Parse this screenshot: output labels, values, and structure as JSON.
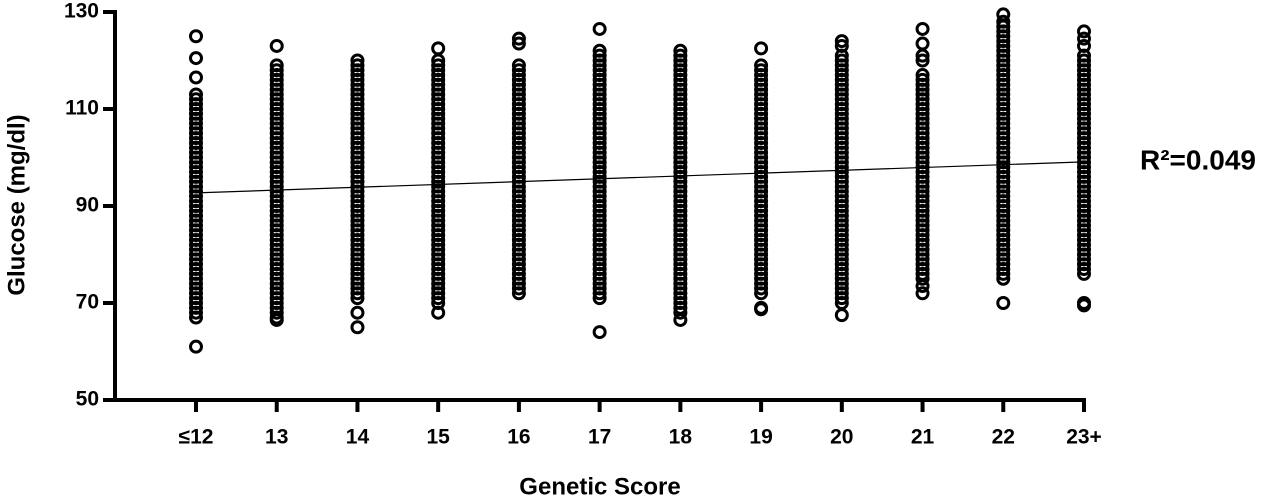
{
  "chart_data": {
    "type": "strip",
    "x_label": "Genetic Score",
    "y_label": "Glucose (mg/dl)",
    "annotation": "R²=0.049",
    "categories": [
      "≤12",
      "13",
      "14",
      "15",
      "16",
      "17",
      "18",
      "19",
      "20",
      "21",
      "22",
      "23+"
    ],
    "ylim": [
      50,
      130
    ],
    "yticks": [
      50,
      70,
      90,
      110,
      130
    ],
    "color": "#000000",
    "points": [
      [
        68,
        69,
        70,
        71,
        72,
        73,
        74,
        75,
        76,
        77,
        78,
        79,
        80,
        81,
        82,
        83,
        84,
        85,
        86,
        87,
        88,
        89,
        90,
        91,
        92,
        93,
        94,
        95,
        96,
        97,
        98,
        99,
        100,
        101,
        102,
        103,
        104,
        105,
        106,
        107,
        108,
        109,
        110,
        111,
        112,
        113,
        125,
        120.5,
        116.5,
        67,
        61
      ],
      [
        67,
        68,
        69,
        70,
        71,
        72,
        73,
        74,
        75,
        76,
        77,
        78,
        79,
        80,
        81,
        82,
        83,
        84,
        85,
        86,
        87,
        88,
        89,
        90,
        91,
        92,
        93,
        94,
        95,
        96,
        97,
        98,
        99,
        100,
        101,
        102,
        103,
        104,
        105,
        106,
        107,
        108,
        109,
        110,
        111,
        112,
        113,
        114,
        115,
        116,
        117,
        118,
        119,
        123,
        66.5
      ],
      [
        71,
        72,
        73,
        74,
        75,
        76,
        77,
        78,
        79,
        80,
        81,
        82,
        83,
        84,
        85,
        86,
        87,
        88,
        89,
        90,
        91,
        92,
        93,
        94,
        95,
        96,
        97,
        98,
        99,
        100,
        101,
        102,
        103,
        104,
        105,
        106,
        107,
        108,
        109,
        110,
        111,
        112,
        113,
        114,
        115,
        116,
        117,
        118,
        119,
        120,
        68,
        65
      ],
      [
        70,
        71,
        72,
        73,
        74,
        75,
        76,
        77,
        78,
        79,
        80,
        81,
        82,
        83,
        84,
        85,
        86,
        87,
        88,
        89,
        90,
        91,
        92,
        93,
        94,
        95,
        96,
        97,
        98,
        99,
        100,
        101,
        102,
        103,
        104,
        105,
        106,
        107,
        108,
        109,
        110,
        111,
        112,
        113,
        114,
        115,
        116,
        117,
        118,
        119,
        120,
        122.5,
        68
      ],
      [
        72,
        73,
        74,
        75,
        76,
        77,
        78,
        79,
        80,
        81,
        82,
        83,
        84,
        85,
        86,
        87,
        88,
        89,
        90,
        91,
        92,
        93,
        94,
        95,
        96,
        97,
        98,
        99,
        100,
        101,
        102,
        103,
        104,
        105,
        106,
        107,
        108,
        109,
        110,
        111,
        112,
        113,
        114,
        115,
        116,
        117,
        118,
        119,
        124.5,
        123.5
      ],
      [
        72,
        73,
        74,
        75,
        76,
        77,
        78,
        79,
        80,
        81,
        82,
        83,
        84,
        85,
        86,
        87,
        88,
        89,
        90,
        91,
        92,
        93,
        94,
        95,
        96,
        97,
        98,
        99,
        100,
        101,
        102,
        103,
        104,
        105,
        106,
        107,
        108,
        109,
        110,
        111,
        112,
        113,
        114,
        115,
        116,
        117,
        118,
        119,
        120,
        121,
        122,
        126.5,
        71,
        64
      ],
      [
        68,
        69,
        70,
        71,
        72,
        73,
        74,
        75,
        76,
        77,
        78,
        79,
        80,
        81,
        82,
        83,
        84,
        85,
        86,
        87,
        88,
        89,
        90,
        91,
        92,
        93,
        94,
        95,
        96,
        97,
        98,
        99,
        100,
        101,
        102,
        103,
        104,
        105,
        106,
        107,
        108,
        109,
        110,
        111,
        112,
        113,
        114,
        115,
        116,
        117,
        118,
        119,
        120,
        121,
        122,
        66.5
      ],
      [
        72,
        73,
        74,
        75,
        76,
        77,
        78,
        79,
        80,
        81,
        82,
        83,
        84,
        85,
        86,
        87,
        88,
        89,
        90,
        91,
        92,
        93,
        94,
        95,
        96,
        97,
        98,
        99,
        100,
        101,
        102,
        103,
        104,
        105,
        106,
        107,
        108,
        109,
        110,
        111,
        112,
        113,
        114,
        115,
        116,
        117,
        118,
        119,
        122.5,
        69,
        68.7
      ],
      [
        70,
        71,
        72,
        73,
        74,
        75,
        76,
        77,
        78,
        79,
        80,
        81,
        82,
        83,
        84,
        85,
        86,
        87,
        88,
        89,
        90,
        91,
        92,
        93,
        94,
        95,
        96,
        97,
        98,
        99,
        100,
        101,
        102,
        103,
        104,
        105,
        106,
        107,
        108,
        109,
        110,
        111,
        112,
        113,
        114,
        115,
        116,
        117,
        118,
        119,
        120,
        121,
        124,
        123,
        67.5
      ],
      [
        75,
        76,
        77,
        78,
        79,
        80,
        81,
        82,
        83,
        84,
        85,
        86,
        87,
        88,
        89,
        90,
        91,
        92,
        93,
        94,
        95,
        96,
        97,
        98,
        99,
        100,
        101,
        102,
        103,
        104,
        105,
        106,
        107,
        108,
        109,
        110,
        111,
        112,
        113,
        114,
        115,
        116,
        117,
        126.5,
        123.5,
        121,
        120,
        73.5,
        72
      ],
      [
        75,
        76,
        77,
        78,
        79,
        80,
        81,
        82,
        83,
        84,
        85,
        86,
        87,
        88,
        89,
        90,
        91,
        92,
        93,
        94,
        95,
        96,
        97,
        98,
        99,
        100,
        101,
        102,
        103,
        104,
        105,
        106,
        107,
        108,
        109,
        110,
        111,
        112,
        113,
        114,
        115,
        116,
        117,
        118,
        119,
        120,
        121,
        122,
        123,
        124,
        125,
        126,
        127,
        128,
        129.5,
        70
      ],
      [
        76,
        77,
        78,
        79,
        80,
        81,
        82,
        83,
        84,
        85,
        86,
        87,
        88,
        89,
        90,
        91,
        92,
        93,
        94,
        95,
        96,
        97,
        98,
        99,
        100,
        101,
        102,
        103,
        104,
        105,
        106,
        107,
        108,
        109,
        110,
        111,
        112,
        113,
        114,
        115,
        116,
        117,
        118,
        119,
        120,
        121,
        126,
        124.5,
        123,
        70,
        69.5
      ]
    ],
    "fit_values": [
      92.7,
      99.1
    ]
  }
}
